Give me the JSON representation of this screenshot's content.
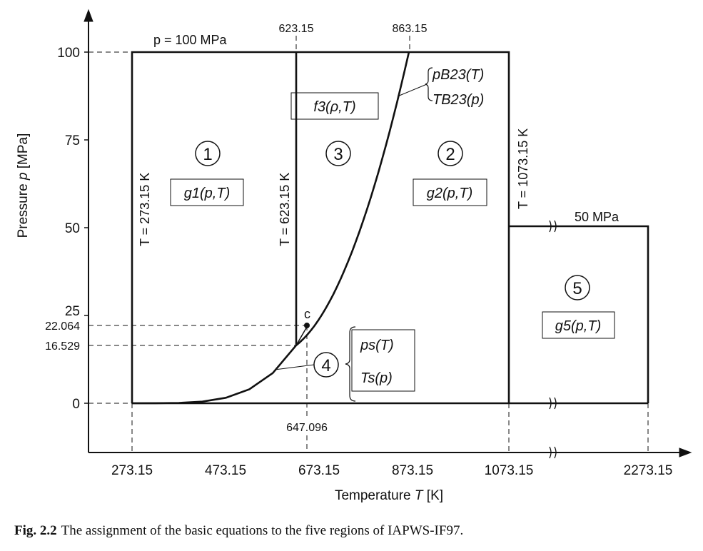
{
  "axes": {
    "xlabel": "Temperature",
    "xvar": "T",
    "xunit": "[K]",
    "ylabel": "Pressure",
    "yvar": "p",
    "yunit": "[MPa]",
    "xticks": [
      "273.15",
      "473.15",
      "673.15",
      "873.15",
      "1073.15",
      "2273.15"
    ],
    "yticks": [
      "0",
      "25",
      "50",
      "75",
      "100"
    ],
    "extra_yticks": [
      "22.064",
      "16.529"
    ],
    "top_labels": [
      "623.15",
      "863.15"
    ],
    "bottom_label": "647.096"
  },
  "boundaries": {
    "p_top": "p = 100 MPa",
    "p_50": "50 MPa",
    "t1": "T = 273.15 K",
    "t2": "T = 623.15 K",
    "t3": "T = 1073.15 K",
    "critical": "c"
  },
  "regions": [
    {
      "num": "1",
      "eq": "g1(p,T)"
    },
    {
      "num": "2",
      "eq": "g2(p,T)"
    },
    {
      "num": "3",
      "eq": "f3(ρ,T)"
    },
    {
      "num": "4",
      "eq1": "ps(T)",
      "eq2": "Ts(p)"
    },
    {
      "num": "5",
      "eq": "g5(p,T)"
    }
  ],
  "b23": {
    "eq1": "pB23(T)",
    "eq2": "TB23(p)"
  },
  "caption": {
    "label": "Fig. 2.2",
    "text": "The assignment of the basic equations to the five regions of IAPWS-IF97."
  }
}
